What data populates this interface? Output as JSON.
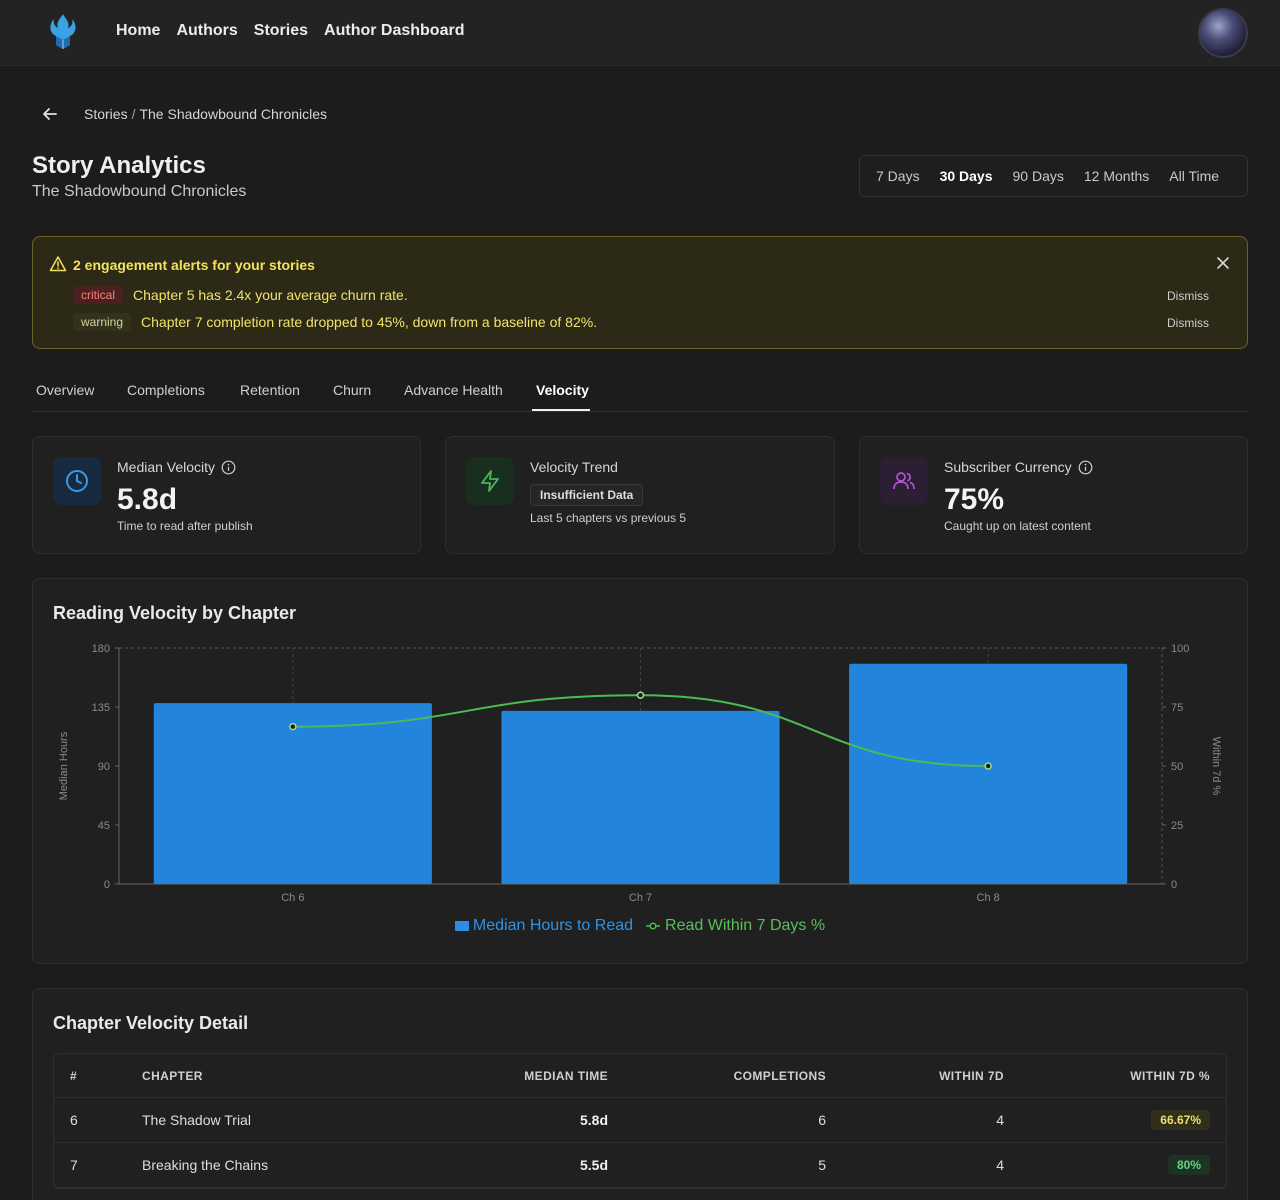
{
  "nav": {
    "items": [
      "Home",
      "Authors",
      "Stories",
      "Author Dashboard"
    ]
  },
  "breadcrumb": {
    "parent": "Stories",
    "separator": "/",
    "current": "The Shadowbound Chronicles"
  },
  "page": {
    "title": "Story Analytics",
    "subtitle": "The Shadowbound Chronicles"
  },
  "range": {
    "options": [
      "7 Days",
      "30 Days",
      "90 Days",
      "12 Months",
      "All Time"
    ],
    "active": "30 Days"
  },
  "alerts": {
    "title": "2 engagement alerts for your stories",
    "items": [
      {
        "level": "critical",
        "text": "Chapter 5 has 2.4x your average churn rate.",
        "dismiss": "Dismiss"
      },
      {
        "level": "warning",
        "text": "Chapter 7 completion rate dropped to 45%, down from a baseline of 82%.",
        "dismiss": "Dismiss"
      }
    ]
  },
  "tabs": {
    "items": [
      "Overview",
      "Completions",
      "Retention",
      "Churn",
      "Advance Health",
      "Velocity"
    ],
    "active": "Velocity"
  },
  "stats": {
    "median": {
      "label": "Median Velocity",
      "value": "5.8d",
      "sub": "Time to read after publish",
      "icon": "clock-icon"
    },
    "trend": {
      "label": "Velocity Trend",
      "pill": "Insufficient Data",
      "sub": "Last 5 chapters vs previous 5",
      "icon": "lightning-icon"
    },
    "currency": {
      "label": "Subscriber Currency",
      "value": "75%",
      "sub": "Caught up on latest content",
      "icon": "users-icon"
    }
  },
  "chart": {
    "title": "Reading Velocity by Chapter",
    "legend": {
      "bars": "Median Hours to Read",
      "line": "Read Within 7 Days %"
    }
  },
  "chart_data": {
    "type": "bar",
    "title": "Reading Velocity by Chapter",
    "categories": [
      "Ch 6",
      "Ch 7",
      "Ch 8"
    ],
    "series": [
      {
        "name": "Median Hours to Read",
        "type": "bar",
        "axis": "left",
        "values": [
          138,
          132,
          168
        ]
      },
      {
        "name": "Read Within 7 Days %",
        "type": "line",
        "axis": "right",
        "values": [
          66.67,
          80,
          50
        ]
      }
    ],
    "ylabel": "Median Hours",
    "y2label": "Within 7d %",
    "yticks": [
      "0",
      "45",
      "90",
      "135",
      "180"
    ],
    "y2ticks": [
      "0",
      "25",
      "50",
      "75",
      "100"
    ],
    "ylim": [
      0,
      180
    ],
    "y2lim": [
      0,
      100
    ],
    "grid": true,
    "legend_position": "bottom",
    "colors": {
      "bar": "#2384dc",
      "line": "#4cbb55"
    }
  },
  "table": {
    "title": "Chapter Velocity Detail",
    "headers": [
      "#",
      "CHAPTER",
      "MEDIAN TIME",
      "COMPLETIONS",
      "WITHIN 7D",
      "WITHIN 7D %"
    ],
    "rows": [
      {
        "num": "6",
        "chapter": "The Shadow Trial",
        "median": "5.8d",
        "completions": "6",
        "within": "4",
        "pct": "66.67%"
      },
      {
        "num": "7",
        "chapter": "Breaking the Chains",
        "median": "5.5d",
        "completions": "5",
        "within": "4",
        "pct": "80%"
      }
    ]
  }
}
